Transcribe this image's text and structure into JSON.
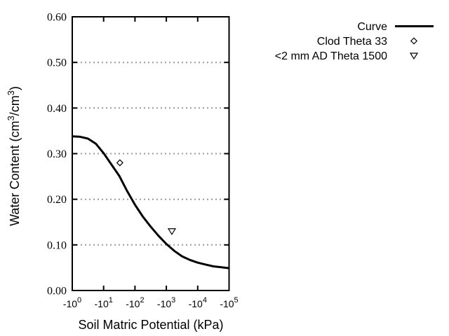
{
  "chart_data": {
    "type": "line",
    "title": "",
    "xlabel": "Soil Matric Potential (kPa)",
    "ylabel": "Water Content (cm^3/cm^3)",
    "x_axis": {
      "scale": "negative log10 of kPa, 5 decades",
      "tick_labels": [
        "-10^0",
        "-10^1",
        "-10^2",
        "-10^3",
        "-10^4",
        "-10^5"
      ],
      "range_log10_abs": [
        0,
        5
      ]
    },
    "y_axis": {
      "min": 0.0,
      "max": 0.6,
      "tick_step": 0.1,
      "tick_labels": [
        "0.00",
        "0.10",
        "0.20",
        "0.30",
        "0.40",
        "0.50",
        "0.60"
      ]
    },
    "grid": {
      "levels": [
        0.1,
        0.2,
        0.3,
        0.4,
        0.5
      ],
      "style": "dotted-horizontal",
      "color": "#999999"
    },
    "legend": {
      "position": "top-right-outside",
      "items": [
        "Curve",
        "Clod Theta 33",
        "<2 mm AD Theta 1500"
      ]
    },
    "series": [
      {
        "name": "Curve",
        "kind": "line",
        "color": "#000000",
        "points_log10abskpa_theta": [
          [
            0,
            0.338
          ],
          [
            0.25,
            0.337
          ],
          [
            0.5,
            0.333
          ],
          [
            0.75,
            0.322
          ],
          [
            1,
            0.301
          ],
          [
            1.25,
            0.276
          ],
          [
            1.5,
            0.251
          ],
          [
            1.75,
            0.218
          ],
          [
            2,
            0.188
          ],
          [
            2.25,
            0.162
          ],
          [
            2.5,
            0.14
          ],
          [
            2.75,
            0.12
          ],
          [
            3,
            0.102
          ],
          [
            3.25,
            0.087
          ],
          [
            3.5,
            0.075
          ],
          [
            3.75,
            0.067
          ],
          [
            4,
            0.061
          ],
          [
            4.25,
            0.057
          ],
          [
            4.5,
            0.053
          ],
          [
            4.75,
            0.051
          ],
          [
            5,
            0.049
          ]
        ]
      },
      {
        "name": "Clod Theta 33",
        "kind": "scatter",
        "marker": "open-diamond",
        "color": "#000000",
        "points_kpa_theta": [
          [
            -33,
            0.28
          ]
        ]
      },
      {
        "name": "<2 mm AD Theta 1500",
        "kind": "scatter",
        "marker": "open-triangle-down",
        "color": "#000000",
        "points_kpa_theta": [
          [
            -1500,
            0.13
          ]
        ]
      }
    ]
  }
}
